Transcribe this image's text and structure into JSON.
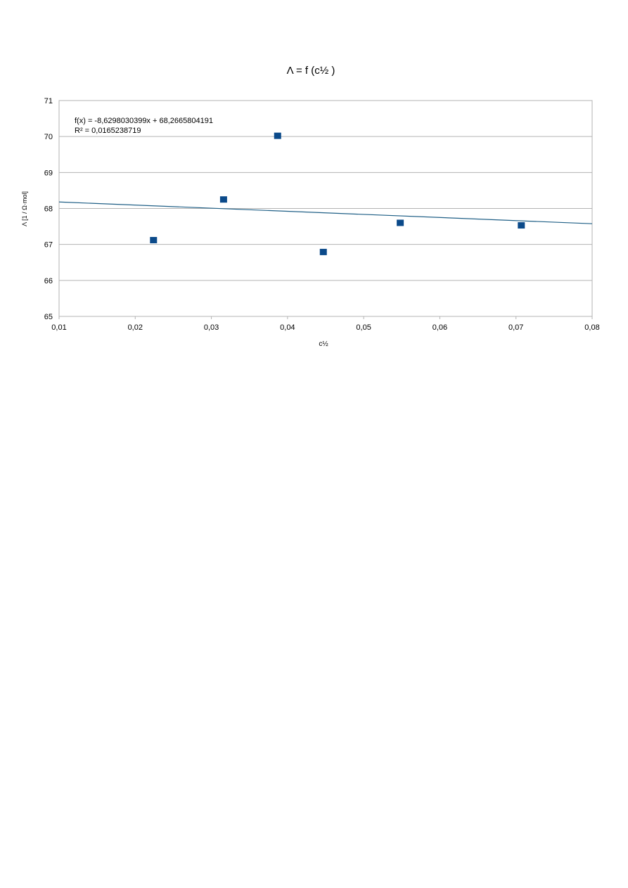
{
  "chart_data": {
    "type": "scatter",
    "title": "Λ = f (c½ )",
    "xlabel": "c½",
    "ylabel": "Λ [1 / Ω·mol]",
    "xlim": [
      0.01,
      0.08
    ],
    "ylim": [
      65,
      71
    ],
    "x_ticks": [
      "0,01",
      "0,02",
      "0,03",
      "0,04",
      "0,05",
      "0,06",
      "0,07",
      "0,08"
    ],
    "y_ticks": [
      "65",
      "66",
      "67",
      "68",
      "69",
      "70",
      "71"
    ],
    "grid": "horizontal",
    "series": [
      {
        "points": [
          {
            "x": 0.0224,
            "y": 67.12
          },
          {
            "x": 0.0316,
            "y": 68.25
          },
          {
            "x": 0.0387,
            "y": 70.02
          },
          {
            "x": 0.0447,
            "y": 66.79
          },
          {
            "x": 0.0548,
            "y": 67.6
          },
          {
            "x": 0.0707,
            "y": 67.53
          }
        ],
        "color": "#0b4a8a"
      }
    ],
    "trendline": {
      "slope": -8.6298030399,
      "intercept": 68.2665804191,
      "color": "#1f5f86",
      "equation_label": "f(x) = -8,6298030399x + 68,2665804191",
      "r2_label": "R² = 0,0165238719"
    }
  }
}
